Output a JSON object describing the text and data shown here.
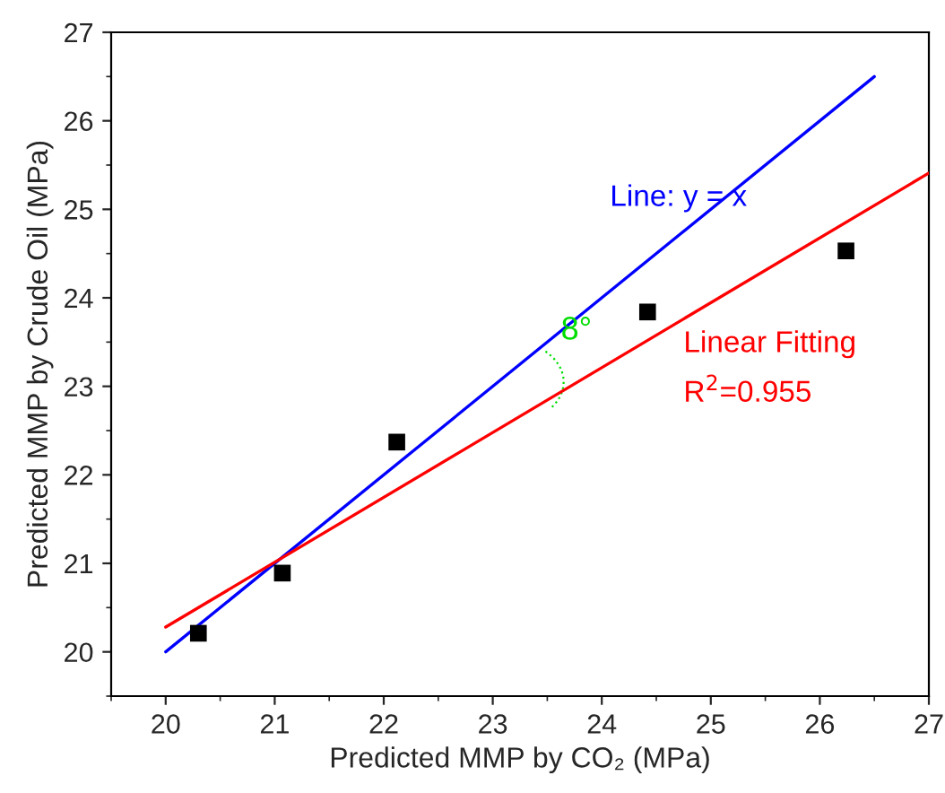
{
  "chart_data": {
    "type": "scatter",
    "xlabel": "Predicted MMP by CO₂ (MPa)",
    "ylabel": "Predicted MMP by Crude Oil (MPa)",
    "xlim": [
      19.5,
      27
    ],
    "ylim": [
      19.5,
      27
    ],
    "xticks": [
      20,
      21,
      22,
      23,
      24,
      25,
      26,
      27
    ],
    "yticks": [
      20,
      21,
      22,
      23,
      24,
      25,
      26,
      27
    ],
    "grid": false,
    "legend": false,
    "series": [
      {
        "color": "#000000",
        "marker": "square",
        "x": [
          20.3,
          21.07,
          22.12,
          24.42,
          26.24
        ],
        "values": [
          20.21,
          20.89,
          22.37,
          23.84,
          24.53
        ]
      },
      {
        "type": "line",
        "color": "#0000ff",
        "marker": "none",
        "line_style": "solid",
        "x": [
          20,
          26.5
        ],
        "values": [
          20,
          26.5
        ]
      },
      {
        "type": "line",
        "color": "#ff0000",
        "marker": "none",
        "line_style": "solid",
        "x": [
          20,
          27
        ],
        "values": [
          20.28,
          25.41
        ]
      }
    ],
    "annotations": [
      "Line: y = x",
      "8°",
      "Linear Fitting",
      "R$^{2}$=0.955"
    ]
  }
}
